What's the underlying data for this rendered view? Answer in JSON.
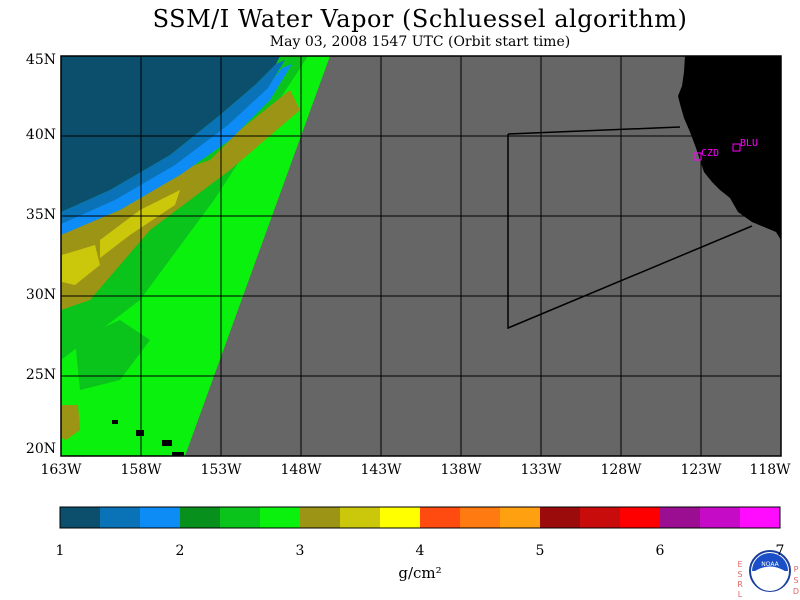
{
  "title": "SSM/I Water Vapor (Schluessel algorithm)",
  "subtitle": "May 03, 2008  1547 UTC  (Orbit start time)",
  "lat_labels": [
    "45N",
    "40N",
    "35N",
    "30N",
    "25N",
    "20N"
  ],
  "lon_labels": [
    "163W",
    "158W",
    "153W",
    "148W",
    "143W",
    "138W",
    "133W",
    "128W",
    "123W",
    "118W"
  ],
  "stations": [
    "CZD",
    "BLU"
  ],
  "colorbar": {
    "ticks": [
      "1",
      "2",
      "3",
      "4",
      "5",
      "6",
      "7"
    ],
    "units": "g/cm²",
    "colors": [
      "#0b4f6c",
      "#0a73b8",
      "#0c8cf4",
      "#07901b",
      "#0ac41c",
      "#09f10d",
      "#9c9414",
      "#cbc80c",
      "#ffff00",
      "#ff4a10",
      "#ff7a10",
      "#ffa010",
      "#9c0b0b",
      "#c80b0b",
      "#ff0000",
      "#9b0e92",
      "#c60bc6",
      "#ff0cff"
    ]
  },
  "colors": {
    "nodata": "#666666",
    "land": "#000000",
    "station": "#ff00ff"
  },
  "logo": {
    "left_letters": [
      "E",
      "S",
      "R",
      "L"
    ],
    "right_letters": [
      "P",
      "S",
      "D"
    ],
    "name": "NOAA"
  }
}
